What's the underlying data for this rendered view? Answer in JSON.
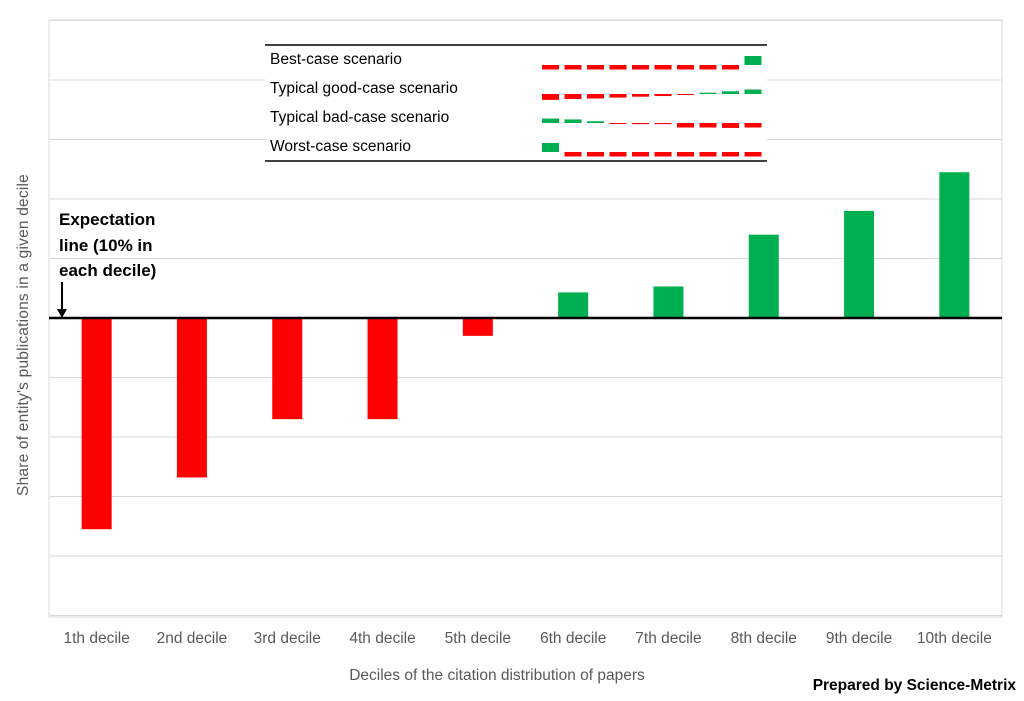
{
  "chart_data": {
    "type": "bar",
    "categories": [
      "1th decile",
      "2nd decile",
      "3rd decile",
      "4th decile",
      "5th decile",
      "6th decile",
      "7th decile",
      "8th decile",
      "9th decile",
      "10th decile"
    ],
    "values": [
      -3.55,
      -2.68,
      -1.7,
      -1.7,
      -0.3,
      0.43,
      0.53,
      1.4,
      1.8,
      2.45
    ],
    "baseline_label": "Expectation line (10% in each decile)",
    "ylabel": "Share of entity's publications in a given decile",
    "xlabel": "Deciles of the citation distribution of papers",
    "ylim": [
      -5,
      5
    ],
    "grid": true,
    "y_tick_labels_shown": false,
    "colors": {
      "negative": "#ff0000",
      "positive": "#00b050",
      "baseline": "#000000",
      "grid": "#d9d9d9"
    },
    "legend_inset": {
      "placement": "top-center",
      "rows": [
        {
          "label": "Best-case scenario",
          "pattern": [
            -1,
            -1,
            -1,
            -1,
            -1,
            -1,
            -1,
            -1,
            -1,
            2
          ]
        },
        {
          "label": "Typical good-case scenario",
          "pattern": [
            -1.3,
            -1.1,
            -1,
            -0.8,
            -0.6,
            -0.45,
            -0.1,
            0.3,
            0.6,
            1
          ]
        },
        {
          "label": "Typical bad-case scenario",
          "pattern": [
            1,
            0.8,
            0.4,
            -0.1,
            -0.25,
            -0.25,
            -1,
            -1,
            -1.1,
            -1
          ]
        },
        {
          "label": "Worst-case scenario",
          "pattern": [
            2,
            -1,
            -1,
            -1,
            -1,
            -1,
            -1,
            -1,
            -1,
            -1
          ]
        }
      ]
    }
  },
  "credit": "Prepared by Science-Metrix"
}
